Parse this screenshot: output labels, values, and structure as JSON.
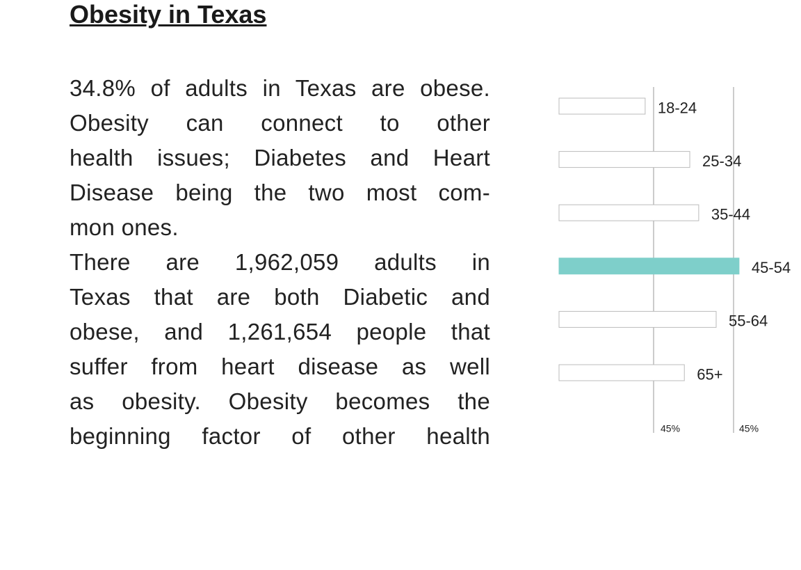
{
  "header": {
    "title": "Obesity in Texas"
  },
  "body": {
    "paragraphs": [
      [
        "34.8% of adults in Texas are obese.",
        "Obesity can connect to other",
        "health issues; Diabetes and Heart",
        "Disease being the two most com-",
        "mon ones."
      ],
      [
        "There are 1,962,059 adults in",
        "Texas that are both Diabetic and",
        "obese, and 1,261,654 people that",
        "suffer from heart disease as well",
        "as obesity. Obesity becomes the",
        "beginning factor of other health"
      ]
    ]
  },
  "chart_data": {
    "type": "bar",
    "orientation": "horizontal",
    "categories": [
      "18-24",
      "25-34",
      "35-44",
      "45-54",
      "55-64",
      "65+"
    ],
    "values": [
      22.2,
      33.7,
      36.0,
      46.4,
      40.5,
      32.3
    ],
    "colors": [
      "#ffffff",
      "#ffffff",
      "#ffffff",
      "#7ecfca",
      "#ffffff",
      "#ffffff"
    ],
    "xlim": [
      0,
      50
    ],
    "axis_labels": [
      "45%",
      "45%"
    ]
  }
}
